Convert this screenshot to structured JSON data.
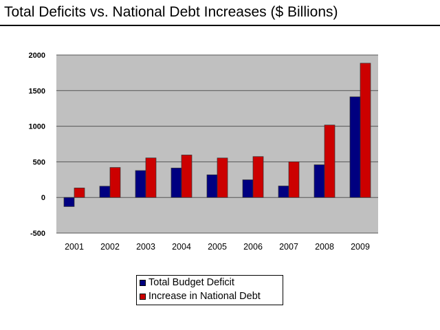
{
  "chart_data": {
    "type": "bar",
    "title": "Total Deficits vs. National Debt Increases ($ Billions)",
    "categories": [
      "2001",
      "2002",
      "2003",
      "2004",
      "2005",
      "2006",
      "2007",
      "2008",
      "2009"
    ],
    "series": [
      {
        "name": "Total Budget Deficit",
        "color": "#000080",
        "values": [
          -128,
          158,
          378,
          413,
          318,
          248,
          161,
          459,
          1413
        ]
      },
      {
        "name": "Increase in National Debt",
        "color": "#CC0000",
        "values": [
          133,
          421,
          555,
          596,
          554,
          574,
          501,
          1017,
          1885
        ]
      }
    ],
    "ylim": [
      -500,
      2000
    ],
    "yticks": [
      "2000",
      "1500",
      "1000",
      "500",
      "0",
      "-500"
    ],
    "grid": true,
    "plot_background": "#C0C0C0",
    "legend_position": "bottom"
  }
}
